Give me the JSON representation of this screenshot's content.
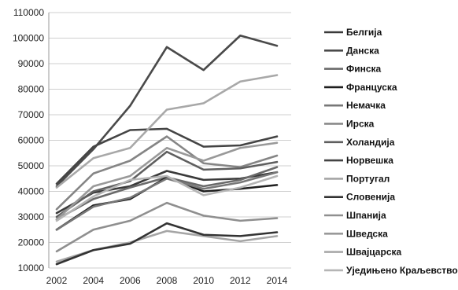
{
  "chart_data": {
    "type": "line",
    "title": "",
    "xlabel": "",
    "ylabel": "",
    "x": [
      2002,
      2004,
      2006,
      2008,
      2010,
      2012,
      2014
    ],
    "x_ticks": [
      "2002",
      "2004",
      "2006",
      "2008",
      "2010",
      "2012",
      "2014"
    ],
    "ylim": [
      10000,
      110000
    ],
    "y_ticks": [
      "10000",
      "20000",
      "30000",
      "40000",
      "50000",
      "60000",
      "70000",
      "80000",
      "90000",
      "100000",
      "110000"
    ],
    "grid": "horizontal",
    "legend_position": "right",
    "series": [
      {
        "name": "Белгија",
        "color": "#3a3a3a",
        "values": [
          31500,
          39500,
          42000,
          48000,
          44500,
          45000,
          47500
        ]
      },
      {
        "name": "Данска",
        "color": "#4a4a4a",
        "values": [
          42000,
          56500,
          73500,
          96500,
          87500,
          101000,
          97000
        ]
      },
      {
        "name": "Финска",
        "color": "#6a6a6a",
        "values": [
          29000,
          37000,
          41500,
          45500,
          42000,
          44500,
          49500
        ]
      },
      {
        "name": "Француска",
        "color": "#1f1f1f",
        "values": [
          25000,
          34500,
          37000,
          45500,
          40000,
          41000,
          42500
        ]
      },
      {
        "name": "Немачка",
        "color": "#777777",
        "values": [
          25000,
          34000,
          37500,
          45000,
          41000,
          43500,
          47500
        ]
      },
      {
        "name": "Ирска",
        "color": "#858585",
        "values": [
          33000,
          47000,
          52000,
          61500,
          51000,
          49500,
          54000
        ]
      },
      {
        "name": "Холандија",
        "color": "#5f5f5f",
        "values": [
          30000,
          40000,
          44000,
          55500,
          48500,
          49000,
          51500
        ]
      },
      {
        "name": "Норвешка",
        "color": "#444444",
        "values": [
          43000,
          57500,
          64000,
          64500,
          57500,
          58000,
          61500
        ]
      },
      {
        "name": "Португал",
        "color": "#a5a5a5",
        "values": [
          12500,
          17000,
          20000,
          24500,
          22500,
          20500,
          22500
        ]
      },
      {
        "name": "Словенија",
        "color": "#333333",
        "values": [
          11500,
          17000,
          19500,
          27500,
          23000,
          22500,
          24000
        ]
      },
      {
        "name": "Шпанија",
        "color": "#8f8f8f",
        "values": [
          16500,
          25000,
          28500,
          35500,
          30500,
          28500,
          29500
        ]
      },
      {
        "name": "Шведска",
        "color": "#999999",
        "values": [
          29000,
          42000,
          46000,
          57000,
          52000,
          57000,
          59000
        ]
      },
      {
        "name": "Швајцарска",
        "color": "#a8a8a8",
        "values": [
          41500,
          53000,
          57000,
          72000,
          74500,
          83000,
          85500
        ]
      },
      {
        "name": "Уједињено Краљевство",
        "color": "#b5b5b5",
        "values": [
          28500,
          38000,
          44500,
          46000,
          38500,
          41500,
          46000
        ]
      }
    ]
  }
}
